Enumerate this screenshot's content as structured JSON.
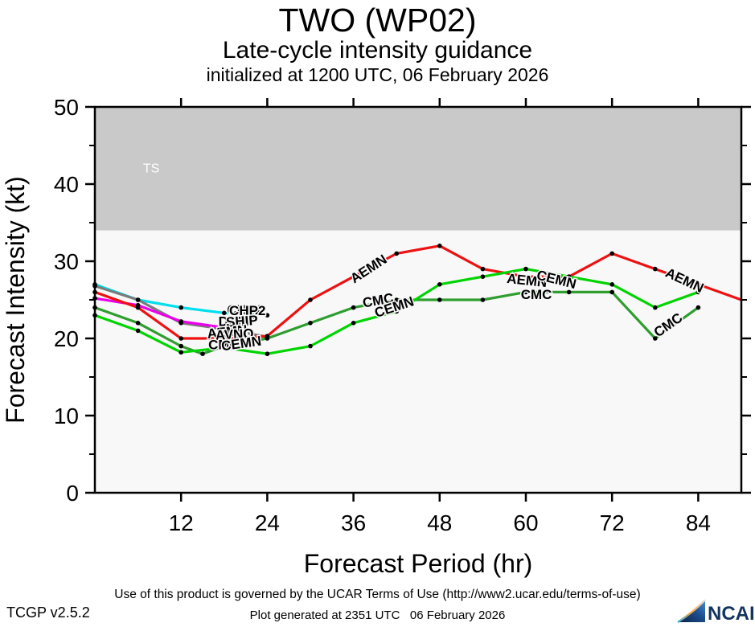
{
  "header": {
    "title": "TWO (WP02)",
    "subtitle": "Late-cycle intensity guidance",
    "initialization": "initialized at 1200 UTC, 06 February 2026"
  },
  "chart_data": {
    "type": "line",
    "title": "TWO (WP02) Late-cycle intensity guidance",
    "xlabel": "Forecast Period (hr)",
    "ylabel": "Forecast Intensity (kt)",
    "xlim": [
      0,
      90
    ],
    "ylim": [
      0,
      50
    ],
    "x_ticks": [
      12,
      24,
      36,
      48,
      60,
      72,
      84
    ],
    "y_major_ticks": [
      0,
      10,
      20,
      30,
      40,
      50
    ],
    "y_minor_ticks": [
      5,
      15,
      25,
      35,
      45
    ],
    "grid": false,
    "legend_position": "none",
    "plot_background": "#f8f8f8",
    "frame_color": "#000000",
    "ts_region": {
      "label": "TS",
      "from_kt": 34,
      "to_kt": 50,
      "color": "#c9c9c9",
      "label_color": "#ffffff"
    },
    "series": [
      {
        "name": "CHPA",
        "color": "#00dfee",
        "points": [
          [
            0,
            27
          ],
          [
            6,
            25
          ],
          [
            12,
            24
          ],
          [
            18,
            23.3
          ],
          [
            24,
            23
          ]
        ]
      },
      {
        "name": "DSHP",
        "color": "#7b7b7b",
        "points": [
          [
            0,
            26.8
          ],
          [
            6,
            25
          ],
          [
            12,
            22
          ],
          [
            18,
            21.2
          ],
          [
            24,
            20.2
          ]
        ]
      },
      {
        "name": "SHIP",
        "color": "#ea00ea",
        "points": [
          [
            0,
            25.2
          ],
          [
            6,
            24.3
          ],
          [
            12,
            22.2
          ],
          [
            18,
            21.4
          ],
          [
            21,
            21.1
          ]
        ]
      },
      {
        "name": "AEMN",
        "color": "#ee1111",
        "points": [
          [
            0,
            26
          ],
          [
            6,
            24
          ],
          [
            12,
            20
          ],
          [
            18,
            20
          ],
          [
            24,
            20.3
          ],
          [
            30,
            25
          ],
          [
            36,
            28
          ],
          [
            42,
            31
          ],
          [
            48,
            32
          ],
          [
            54,
            29
          ],
          [
            60,
            28
          ],
          [
            66,
            28
          ],
          [
            72,
            31
          ],
          [
            78,
            29
          ],
          [
            84,
            27
          ],
          [
            90,
            25
          ]
        ]
      },
      {
        "name": "CMC",
        "color": "#2f9e2f",
        "points": [
          [
            0,
            24
          ],
          [
            6,
            22
          ],
          [
            12,
            19
          ],
          [
            15,
            18
          ],
          [
            18,
            19
          ],
          [
            24,
            20
          ],
          [
            30,
            22
          ],
          [
            36,
            24
          ],
          [
            42,
            25
          ],
          [
            48,
            25
          ],
          [
            54,
            25
          ],
          [
            60,
            26
          ],
          [
            66,
            26
          ],
          [
            72,
            26
          ],
          [
            78,
            20
          ],
          [
            84,
            24
          ]
        ]
      },
      {
        "name": "CEMN",
        "color": "#00d400",
        "points": [
          [
            0,
            23
          ],
          [
            6,
            21
          ],
          [
            12,
            18.2
          ],
          [
            18,
            18.8
          ],
          [
            24,
            18
          ],
          [
            30,
            19
          ],
          [
            36,
            22
          ],
          [
            42,
            23.5
          ],
          [
            48,
            27
          ],
          [
            54,
            28
          ],
          [
            60,
            29
          ],
          [
            66,
            28
          ],
          [
            72,
            27
          ],
          [
            78,
            24
          ],
          [
            84,
            26
          ]
        ]
      }
    ],
    "line_labels": [
      {
        "text": "CHPA",
        "hr": 18.4,
        "kt": 23.1,
        "rot": 0
      },
      {
        "text": "CHP2",
        "hr": 18.7,
        "kt": 23.0,
        "rot": 0
      },
      {
        "text": "DSHP",
        "hr": 17.2,
        "kt": 21.6,
        "rot": 0
      },
      {
        "text": "SHIP",
        "hr": 18.3,
        "kt": 21.5,
        "rot": -4
      },
      {
        "text": "AEMN",
        "hr": 15.7,
        "kt": 20.0,
        "rot": -6
      },
      {
        "text": "AVNO",
        "hr": 16.8,
        "kt": 19.8,
        "rot": -3
      },
      {
        "text": "CMC",
        "hr": 15.8,
        "kt": 18.6,
        "rot": 0
      },
      {
        "text": "CEMN",
        "hr": 17.7,
        "kt": 18.4,
        "rot": -8
      },
      {
        "text": "AEMN",
        "hr": 36.1,
        "kt": 27.1,
        "rot": -33
      },
      {
        "text": "CMC",
        "hr": 37.4,
        "kt": 24.0,
        "rot": -10
      },
      {
        "text": "CEMN",
        "hr": 39.2,
        "kt": 22.7,
        "rot": -18
      },
      {
        "text": "AEMN",
        "hr": 57.3,
        "kt": 27.2,
        "rot": 6
      },
      {
        "text": "CEMN",
        "hr": 61.4,
        "kt": 27.7,
        "rot": 14
      },
      {
        "text": "CMC",
        "hr": 59.3,
        "kt": 25.1,
        "rot": 0
      },
      {
        "text": "AEMN",
        "hr": 79.3,
        "kt": 28.1,
        "rot": 25
      },
      {
        "text": "CMC",
        "hr": 78.4,
        "kt": 20.1,
        "rot": -35
      }
    ]
  },
  "footer": {
    "terms": "Use of this product is governed by the UCAR Terms of Use (http://www2.ucar.edu/terms-of-use)",
    "generated": "Plot generated at 2351 UTC   06 February 2026",
    "version": "TCGP v2.5.2",
    "logo_text": "NCAR"
  }
}
